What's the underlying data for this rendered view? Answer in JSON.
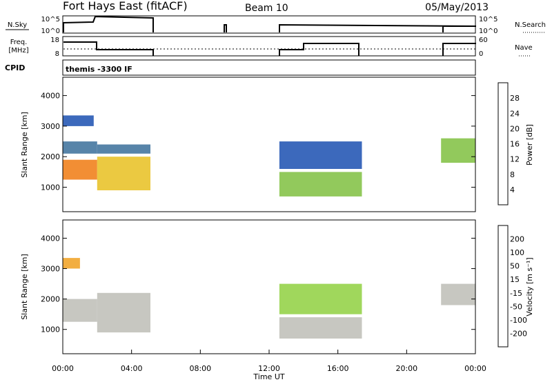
{
  "header": {
    "station": "Fort Hays East (fitACF)",
    "beam": "Beam 10",
    "date": "05/May/2013"
  },
  "params_panel": {
    "nsky_label": "N.Sky",
    "nsky_ticks": [
      "10^5",
      "10^0"
    ],
    "nsearch_label": "N.Search",
    "nsearch_ticks": [
      "10^5",
      "10^0"
    ],
    "freq_label_line1": "Freq.",
    "freq_label_line2": "[MHz]",
    "freq_ticks": [
      "18",
      "8"
    ],
    "nave_label": "Nave",
    "nave_ticks": [
      "60",
      "0"
    ],
    "cpid_label": "CPID",
    "cpid_value": "themis -3300 IF"
  },
  "colors": {
    "power_scale": [
      "#1a1aff",
      "#1a4fb0",
      "#3a6e9a",
      "#3c8a6a",
      "#7fbf3f",
      "#e8c020",
      "#f07a10",
      "#e81010"
    ],
    "velocity_scale": [
      "#1a1aff",
      "#1f5fd0",
      "#2a8a4a",
      "#8fd040",
      "#bdbdb6",
      "#f0a020",
      "#f06a10",
      "#e83010",
      "#e80000"
    ]
  },
  "chart_data": [
    {
      "type": "heatmap",
      "name": "power",
      "xlabel": "",
      "ylabel": "Slant Range [km]",
      "xlim": [
        0,
        24
      ],
      "ylim": [
        200,
        4600
      ],
      "yticks": [
        1000,
        2000,
        3000,
        4000
      ],
      "ytick_labels": [
        "1000",
        "2000",
        "3000",
        "4000"
      ],
      "colorbar": {
        "label": "Power [dB]",
        "range": [
          0,
          32
        ],
        "ticks": [
          4,
          8,
          12,
          16,
          20,
          24,
          28
        ],
        "tick_labels": [
          "4",
          "8",
          "12",
          "16",
          "20",
          "24",
          "28"
        ]
      },
      "echo_bands": [
        {
          "t0": 0.0,
          "t1": 2.0,
          "r0": 1250,
          "r1": 1900,
          "value": 24
        },
        {
          "t0": 0.0,
          "t1": 2.0,
          "r0": 2100,
          "r1": 2500,
          "value": 10
        },
        {
          "t0": 0.0,
          "t1": 1.8,
          "r0": 3000,
          "r1": 3350,
          "value": 4
        },
        {
          "t0": 2.0,
          "t1": 5.1,
          "r0": 900,
          "r1": 2000,
          "value": 20
        },
        {
          "t0": 2.0,
          "t1": 5.1,
          "r0": 2100,
          "r1": 2400,
          "value": 8
        },
        {
          "t0": 12.6,
          "t1": 17.4,
          "r0": 700,
          "r1": 1500,
          "value": 16
        },
        {
          "t0": 12.6,
          "t1": 17.4,
          "r0": 1600,
          "r1": 2500,
          "value": 6
        },
        {
          "t0": 22.0,
          "t1": 24.0,
          "r0": 1800,
          "r1": 2600,
          "value": 18
        }
      ]
    },
    {
      "type": "heatmap",
      "name": "velocity",
      "xlabel": "Time UT",
      "ylabel": "Slant Range [km]",
      "xlim": [
        0,
        24
      ],
      "ylim": [
        200,
        4600
      ],
      "xticks": [
        0,
        4,
        8,
        12,
        16,
        20,
        24
      ],
      "xtick_labels": [
        "00:00",
        "04:00",
        "08:00",
        "12:00",
        "16:00",
        "20:00",
        "00:00"
      ],
      "yticks": [
        1000,
        2000,
        3000,
        4000
      ],
      "ytick_labels": [
        "1000",
        "2000",
        "3000",
        "4000"
      ],
      "colorbar": {
        "label": "Velocity [m s⁻¹]",
        "range": [
          -250,
          250
        ],
        "ticks": [
          200,
          100,
          50,
          15,
          -15,
          -50,
          -100,
          -200
        ],
        "tick_labels": [
          "200",
          "100",
          "50",
          "15",
          "-15",
          "-50",
          "-100",
          "-200"
        ]
      },
      "echo_bands": [
        {
          "t0": 0.0,
          "t1": 2.0,
          "r0": 1250,
          "r1": 2000,
          "value": 0
        },
        {
          "t0": 0.0,
          "t1": 1.0,
          "r0": 3000,
          "r1": 3350,
          "value": -60
        },
        {
          "t0": 2.0,
          "t1": 5.1,
          "r0": 900,
          "r1": 2200,
          "value": 0
        },
        {
          "t0": 12.6,
          "t1": 17.4,
          "r0": 700,
          "r1": 1400,
          "value": 0
        },
        {
          "t0": 12.6,
          "t1": 17.4,
          "r0": 1500,
          "r1": 2500,
          "value": 30
        },
        {
          "t0": 22.0,
          "t1": 24.0,
          "r0": 1800,
          "r1": 2500,
          "value": 0
        }
      ]
    }
  ]
}
